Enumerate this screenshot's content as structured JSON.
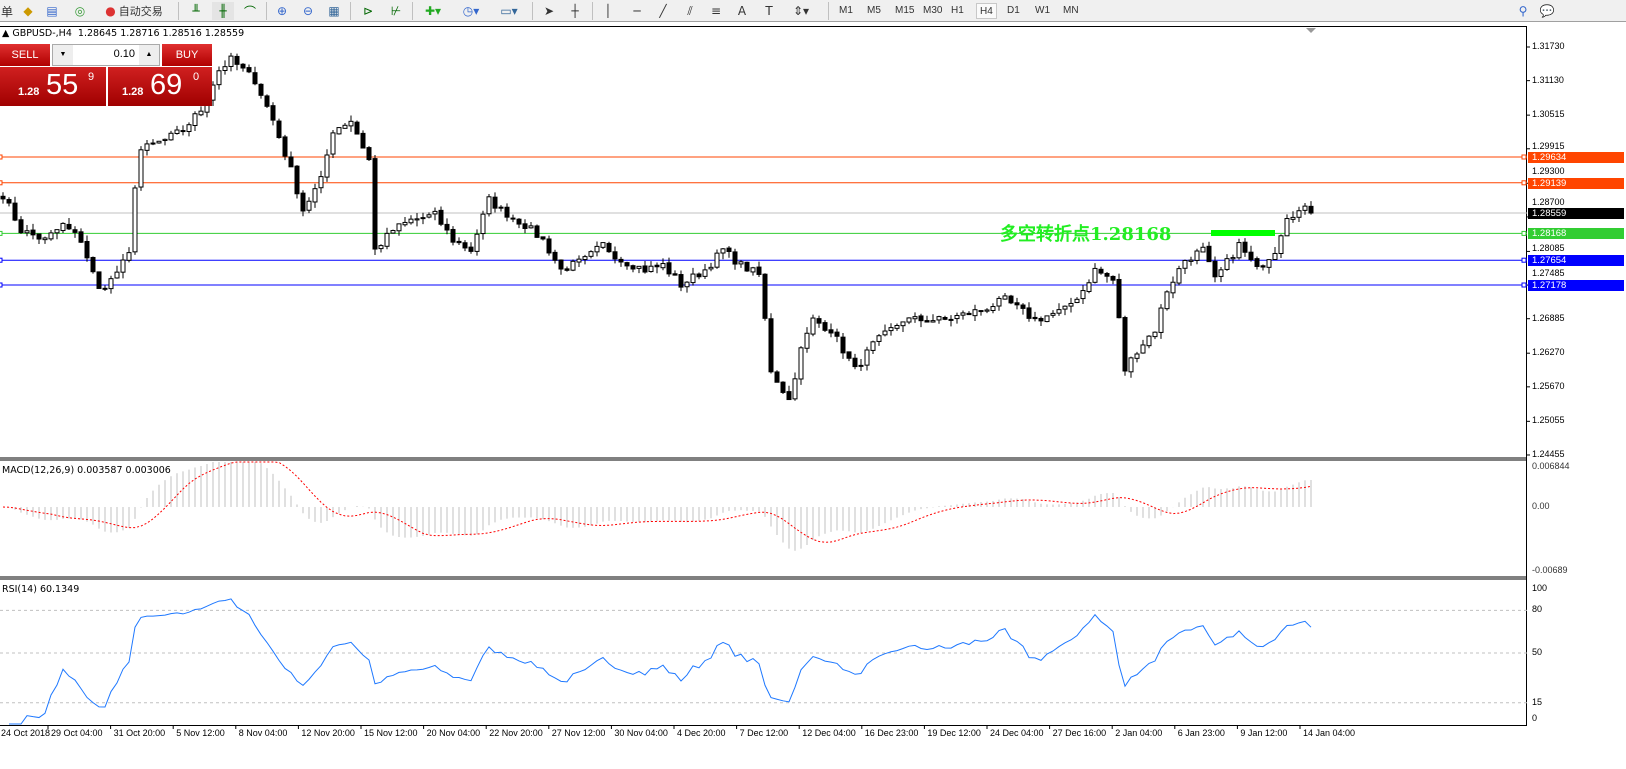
{
  "toolbar": {
    "menu_fragment": "单",
    "autotrade_label": "自动交易",
    "timeframes": [
      "M1",
      "M5",
      "M15",
      "M30",
      "H1",
      "H4",
      "D1",
      "W1",
      "MN"
    ],
    "active_timeframe": "H4"
  },
  "chart": {
    "header": "GBPUSD-,H4  1.28645 1.28716 1.28516 1.28559",
    "symbol": "GBPUSD-",
    "period": "H4",
    "ohlc": {
      "open": "1.28645",
      "high": "1.28716",
      "low": "1.28516",
      "close": "1.28559"
    }
  },
  "trade_panel": {
    "sell_label": "SELL",
    "buy_label": "BUY",
    "lot": "0.10",
    "sell_price": {
      "prefix": "1.28",
      "big": "55",
      "sup": "9"
    },
    "buy_price": {
      "prefix": "1.28",
      "big": "69",
      "sup": "0"
    }
  },
  "annotation": {
    "text": "多空转折点1.28168",
    "color": "#22ee22"
  },
  "price_axis": [
    "1.31730",
    "1.31130",
    "1.30515",
    "1.29915",
    "1.29300",
    "1.28700",
    "1.28085",
    "1.27485",
    "1.26885",
    "1.26270",
    "1.25670",
    "1.25055",
    "1.24455"
  ],
  "levels": [
    {
      "price": "1.29634",
      "color": "#ff4500"
    },
    {
      "price": "1.29139",
      "color": "#ff4500"
    },
    {
      "price": "1.28559",
      "color": "#000000",
      "line": "#c0c0c0"
    },
    {
      "price": "1.28168",
      "color": "#32cd32"
    },
    {
      "price": "1.27654",
      "color": "#0000ff"
    },
    {
      "price": "1.27178",
      "color": "#0000ff"
    }
  ],
  "macd": {
    "label": "MACD(12,26,9) 0.003587 0.003006",
    "axis": [
      "0.006844",
      "0.00",
      "-0.00689"
    ]
  },
  "rsi": {
    "label": "RSI(14) 60.1349",
    "axis": [
      "100",
      "80",
      "50",
      "15",
      "0"
    ],
    "color": "#1e78ff"
  },
  "time_axis": [
    "24 Oct 2018",
    "29 Oct 04:00",
    "31 Oct 20:00",
    "5 Nov 12:00",
    "8 Nov 04:00",
    "12 Nov 20:00",
    "15 Nov 12:00",
    "20 Nov 04:00",
    "22 Nov 20:00",
    "27 Nov 12:00",
    "30 Nov 04:00",
    "4 Dec 20:00",
    "7 Dec 12:00",
    "12 Dec 04:00",
    "16 Dec 23:00",
    "19 Dec 12:00",
    "24 Dec 04:00",
    "27 Dec 16:00",
    "2 Jan 04:00",
    "6 Jan 23:00",
    "9 Jan 12:00",
    "14 Jan 04:00"
  ],
  "chart_data": {
    "type": "candlestick",
    "note_bars": "approximate close path, [bar, close]",
    "close_anchors": [
      [
        0,
        1.2891
      ],
      [
        3,
        1.2823
      ],
      [
        7,
        1.2804
      ],
      [
        10,
        1.2833
      ],
      [
        13,
        1.2804
      ],
      [
        16,
        1.2708
      ],
      [
        18,
        1.2727
      ],
      [
        21,
        1.2775
      ],
      [
        22,
        1.291
      ],
      [
        23,
        1.2977
      ],
      [
        27,
        1.2996
      ],
      [
        30,
        1.3015
      ],
      [
        33,
        1.3054
      ],
      [
        36,
        1.313
      ],
      [
        38,
        1.315
      ],
      [
        42,
        1.3111
      ],
      [
        45,
        1.3034
      ],
      [
        48,
        1.2938
      ],
      [
        50,
        1.2862
      ],
      [
        53,
        1.2919
      ],
      [
        55,
        1.3015
      ],
      [
        58,
        1.3034
      ],
      [
        61,
        1.2958
      ],
      [
        62,
        1.2785
      ],
      [
        65,
        1.2823
      ],
      [
        68,
        1.2842
      ],
      [
        72,
        1.2852
      ],
      [
        75,
        1.2804
      ],
      [
        78,
        1.2785
      ],
      [
        81,
        1.2881
      ],
      [
        83,
        1.2862
      ],
      [
        87,
        1.2833
      ],
      [
        90,
        1.2804
      ],
      [
        93,
        1.2747
      ],
      [
        97,
        1.2766
      ],
      [
        100,
        1.2795
      ],
      [
        103,
        1.2766
      ],
      [
        107,
        1.2747
      ],
      [
        110,
        1.2756
      ],
      [
        113,
        1.2718
      ],
      [
        117,
        1.2747
      ],
      [
        120,
        1.2785
      ],
      [
        123,
        1.2756
      ],
      [
        126,
        1.2737
      ],
      [
        127,
        1.2651
      ],
      [
        128,
        1.2555
      ],
      [
        131,
        1.2497
      ],
      [
        133,
        1.2593
      ],
      [
        135,
        1.2651
      ],
      [
        138,
        1.2632
      ],
      [
        142,
        1.2555
      ],
      [
        145,
        1.2603
      ],
      [
        150,
        1.2651
      ],
      [
        157,
        1.2651
      ],
      [
        163,
        1.267
      ],
      [
        167,
        1.2689
      ],
      [
        172,
        1.2651
      ],
      [
        177,
        1.267
      ],
      [
        180,
        1.2708
      ],
      [
        182,
        1.2747
      ],
      [
        185,
        1.2727
      ],
      [
        186,
        1.2651
      ],
      [
        187,
        1.2555
      ],
      [
        189,
        1.2593
      ],
      [
        192,
        1.2632
      ],
      [
        194,
        1.2708
      ],
      [
        197,
        1.2766
      ],
      [
        200,
        1.2785
      ],
      [
        202,
        1.2727
      ],
      [
        206,
        1.2795
      ],
      [
        209,
        1.2747
      ],
      [
        212,
        1.2785
      ],
      [
        214,
        1.2852
      ],
      [
        217,
        1.2862
      ],
      [
        218,
        1.2856
      ]
    ]
  }
}
